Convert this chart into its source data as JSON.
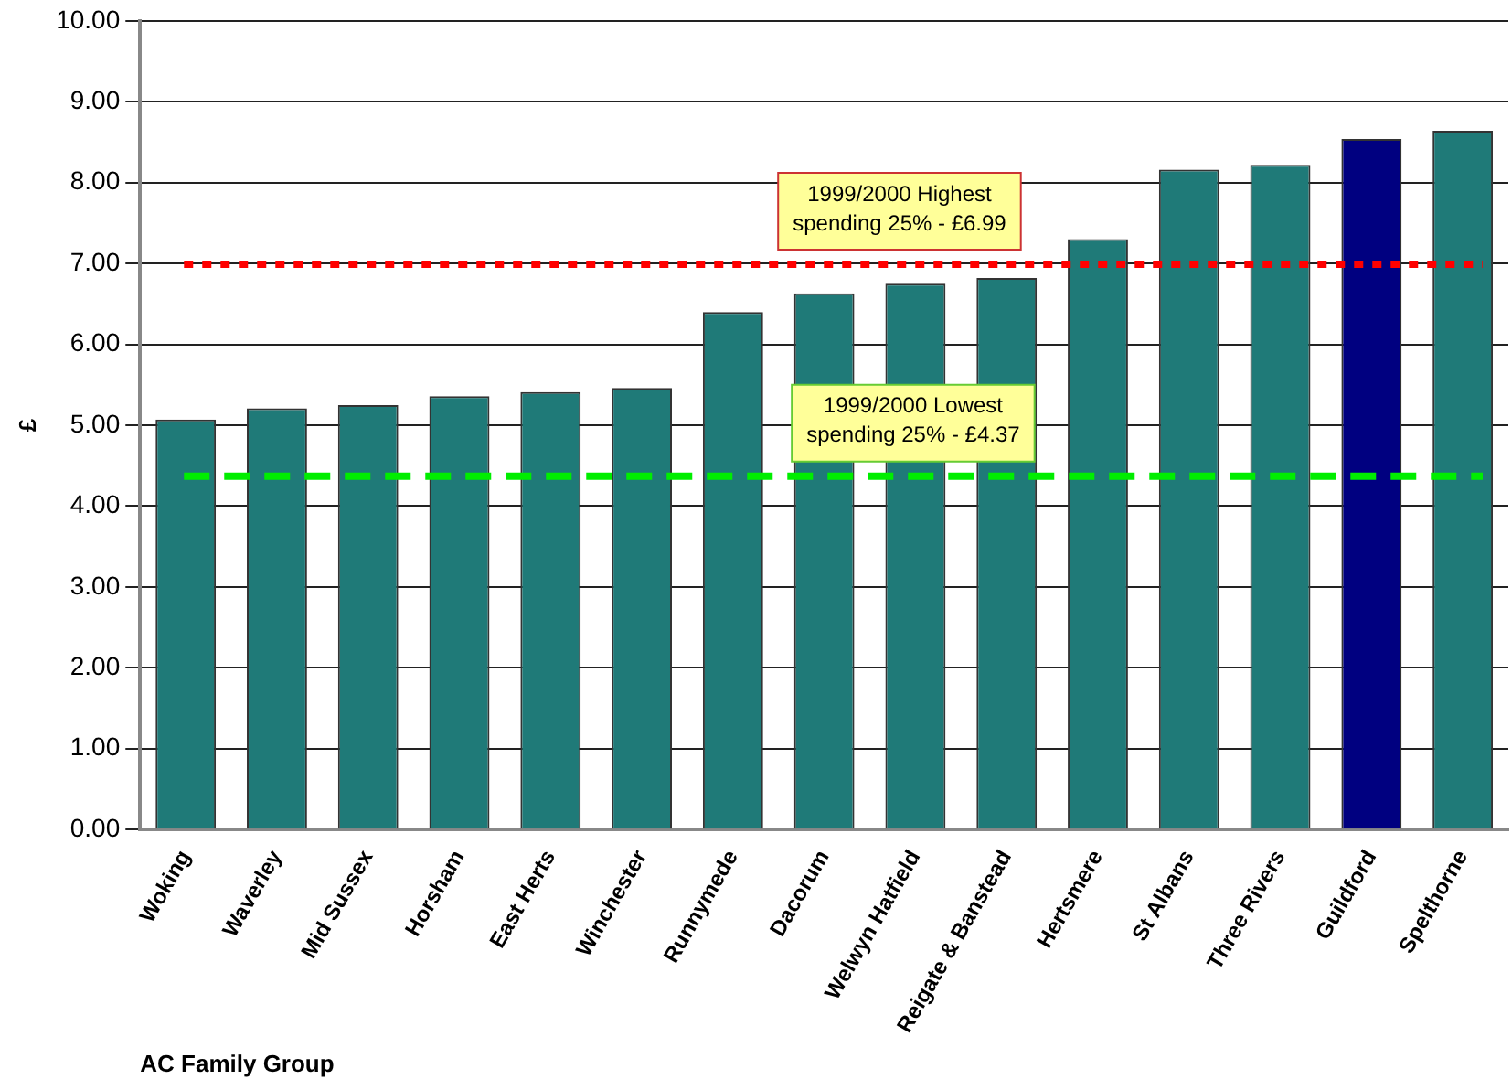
{
  "chart_data": {
    "type": "bar",
    "xlabel": "AC Family Group",
    "ylabel": "£",
    "categories": [
      "Woking",
      "Waverley",
      "Mid Sussex",
      "Horsham",
      "East Herts",
      "Winchester",
      "Runnymede",
      "Dacorum",
      "Welwyn Hatfield",
      "Reigate & Banstead",
      "Hertsmere",
      "St Albans",
      "Three Rivers",
      "Guildford",
      "Spelthorne"
    ],
    "values": [
      5.07,
      5.21,
      5.25,
      5.36,
      5.41,
      5.46,
      6.4,
      6.63,
      6.75,
      6.82,
      7.3,
      8.16,
      8.22,
      8.54,
      8.64
    ],
    "colors": [
      "#1f7a78",
      "#1f7a78",
      "#1f7a78",
      "#1f7a78",
      "#1f7a78",
      "#1f7a78",
      "#1f7a78",
      "#1f7a78",
      "#1f7a78",
      "#1f7a78",
      "#1f7a78",
      "#1f7a78",
      "#1f7a78",
      "#000080",
      "#1f7a78"
    ],
    "ylim": [
      0,
      10
    ],
    "yticks": [
      {
        "value": 0,
        "label": "0.00"
      },
      {
        "value": 1,
        "label": "1.00"
      },
      {
        "value": 2,
        "label": "2.00"
      },
      {
        "value": 3,
        "label": "3.00"
      },
      {
        "value": 4,
        "label": "4.00"
      },
      {
        "value": 5,
        "label": "5.00"
      },
      {
        "value": 6,
        "label": "6.00"
      },
      {
        "value": 7,
        "label": "7.00"
      },
      {
        "value": 8,
        "label": "8.00"
      },
      {
        "value": 9,
        "label": "9.00"
      },
      {
        "value": 10,
        "label": "10.00"
      }
    ],
    "grid": "y",
    "legend": false,
    "ref_lines": [
      {
        "axis": "y",
        "value": 6.99,
        "label": "1999/2000 Highest spending 25% - £6.99",
        "color": "#ff0000",
        "line_style": "dotted"
      },
      {
        "axis": "y",
        "value": 4.37,
        "label": "1999/2000 Lowest spending 25% - £4.37",
        "color": "#00ee00",
        "line_style": "dashed"
      }
    ]
  }
}
